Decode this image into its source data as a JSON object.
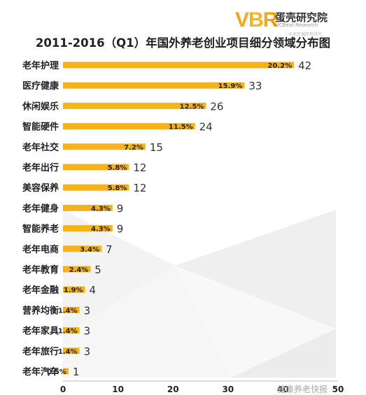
{
  "logo": {
    "mark": "VBR",
    "cn": "蛋壳研究院",
    "en": "VCBeat Research",
    "en2": "未来医健趋势研究"
  },
  "watermark": "健康养老快报",
  "chart_data": {
    "type": "bar",
    "orientation": "horizontal",
    "title": "2011-2016（Q1）年国外养老创业项目细分领域分布图",
    "categories": [
      "老年护理",
      "医疗健康",
      "休闲娱乐",
      "智能硬件",
      "老年社交",
      "老年出行",
      "美容保养",
      "老年健身",
      "智能养老",
      "老年电商",
      "老年教育",
      "老年金融",
      "营养均衡",
      "老年家具",
      "老年旅行",
      "老年汽车"
    ],
    "values": [
      42,
      33,
      26,
      24,
      15,
      12,
      12,
      9,
      9,
      7,
      5,
      4,
      3,
      3,
      3,
      1
    ],
    "percent_labels": [
      "20.2%",
      "15.9%",
      "12.5%",
      "11.5%",
      "7.2%",
      "5.8%",
      "5.8%",
      "4.3%",
      "4.3%",
      "3.4%",
      "2.4%",
      "1.9%",
      "1.4%",
      "1.4%",
      "1.4%",
      "0.5%"
    ],
    "xlim": [
      0,
      50
    ],
    "xticks": [
      "0",
      "10",
      "20",
      "30",
      "40",
      "50"
    ],
    "bar_color": "#f6b21b",
    "grid": false
  }
}
